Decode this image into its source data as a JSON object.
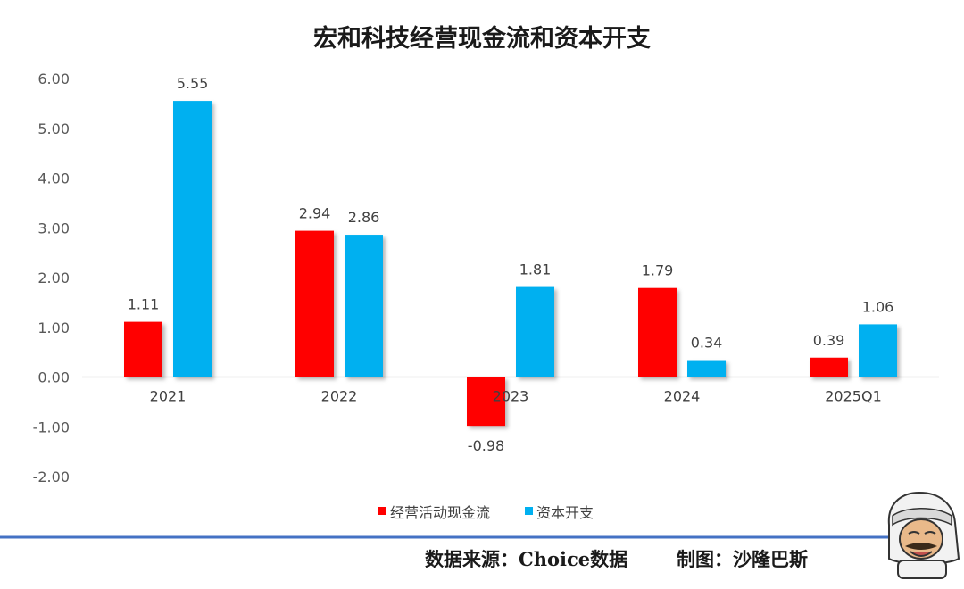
{
  "colors": {
    "operating": "#ff0000",
    "capex": "#00b0f0",
    "footer_line": "#4472c4",
    "axis": "#bfbfbf"
  },
  "footer": {
    "source": "数据来源：Choice数据",
    "author": "制图：沙隆巴斯"
  },
  "mascot": {
    "icon": "cartoon-mascot-icon"
  },
  "chart_data": {
    "type": "bar",
    "title": "宏和科技经营现金流和资本开支",
    "xlabel": "",
    "ylabel": "",
    "categories": [
      "2021",
      "2022",
      "2023",
      "2024",
      "2025Q1"
    ],
    "series": [
      {
        "name": "经营活动现金流",
        "values": [
          1.11,
          2.94,
          -0.98,
          1.79,
          0.39
        ]
      },
      {
        "name": "资本开支",
        "values": [
          5.55,
          2.86,
          1.81,
          0.34,
          1.06
        ]
      }
    ],
    "ylim": [
      -2,
      6
    ],
    "yticks": [
      "6.00",
      "5.00",
      "4.00",
      "3.00",
      "2.00",
      "1.00",
      "0.00",
      "-1.00",
      "-2.00"
    ],
    "data_labels": [
      [
        "1.11",
        "2.94",
        "-0.98",
        "1.79",
        "0.39"
      ],
      [
        "5.55",
        "2.86",
        "1.81",
        "0.34",
        "1.06"
      ]
    ],
    "grid": false,
    "legend": "bottom"
  }
}
